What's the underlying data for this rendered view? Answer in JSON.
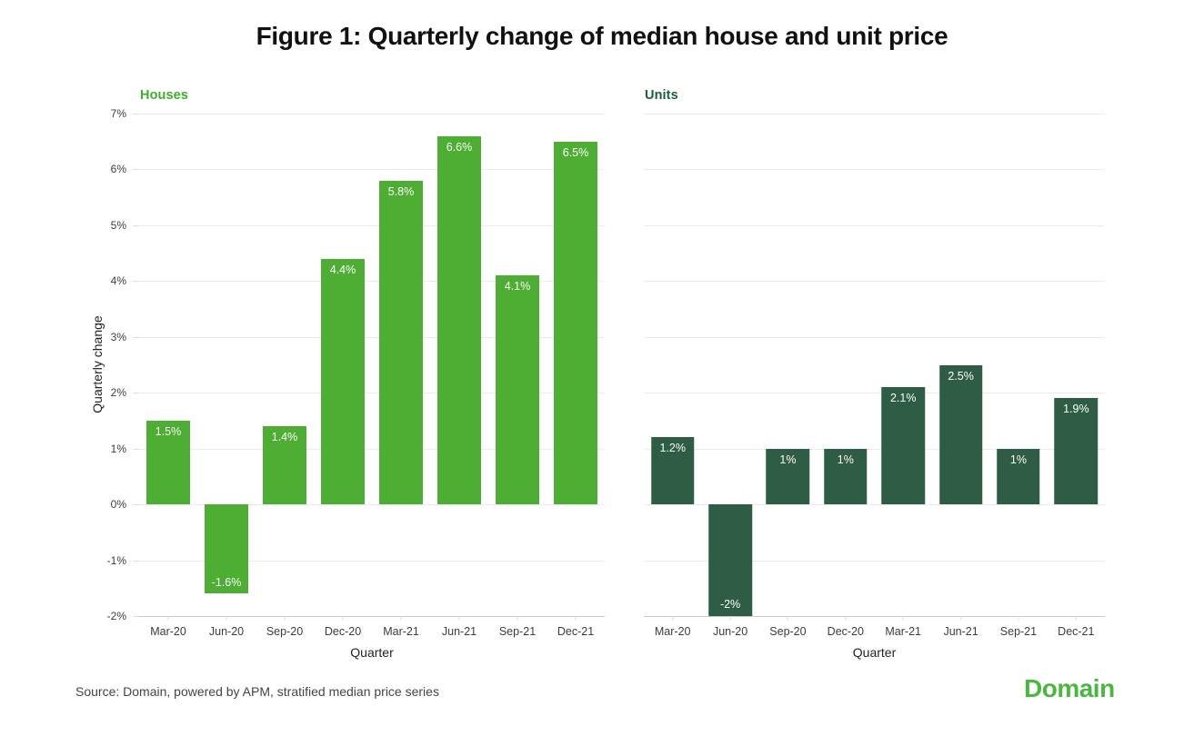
{
  "title": "Figure 1: Quarterly change of median house and unit price",
  "source_note": "Source: Domain, powered by APM, stratified median price series",
  "brand_logo": "Domain",
  "colors": {
    "houses_bar": "#4DAE33",
    "units_bar": "#2E5C44",
    "houses_title": "#3EAC2C",
    "units_title": "#1F5C3C",
    "logo_green": "#4BB740",
    "gridline": "#ebebeb",
    "axis_line": "#c9c9c9",
    "tick_label": "#3c3c3c",
    "bar_value_text": "#ffffff"
  },
  "chart_data": [
    {
      "type": "bar",
      "title": "Houses",
      "xlabel": "Quarter",
      "ylabel": "Quarterly change",
      "categories": [
        "Mar-20",
        "Jun-20",
        "Sep-20",
        "Dec-20",
        "Mar-21",
        "Jun-21",
        "Sep-21",
        "Dec-21"
      ],
      "values": [
        1.5,
        -1.6,
        1.4,
        4.4,
        5.8,
        6.6,
        4.1,
        6.5
      ],
      "value_labels": [
        "1.5%",
        "-1.6%",
        "1.4%",
        "4.4%",
        "5.8%",
        "6.6%",
        "4.1%",
        "6.5%"
      ],
      "ylim": [
        -2,
        7
      ],
      "ytick_labels": [
        "7%",
        "6%",
        "5%",
        "4%",
        "3%",
        "2%",
        "1%",
        "0%",
        "-1%",
        "-2%"
      ],
      "show_ytick_labels": true,
      "grid": true,
      "legend": "none"
    },
    {
      "type": "bar",
      "title": "Units",
      "xlabel": "Quarter",
      "ylabel": "",
      "categories": [
        "Mar-20",
        "Jun-20",
        "Sep-20",
        "Dec-20",
        "Mar-21",
        "Jun-21",
        "Sep-21",
        "Dec-21"
      ],
      "values": [
        1.2,
        -2,
        1,
        1,
        2.1,
        2.5,
        1,
        1.9
      ],
      "value_labels": [
        "1.2%",
        "-2%",
        "1%",
        "1%",
        "2.1%",
        "2.5%",
        "1%",
        "1.9%"
      ],
      "ylim": [
        -2,
        7
      ],
      "ytick_labels": [
        "7%",
        "6%",
        "5%",
        "4%",
        "3%",
        "2%",
        "1%",
        "0%",
        "-1%",
        "-2%"
      ],
      "show_ytick_labels": false,
      "grid": true,
      "legend": "none"
    }
  ]
}
